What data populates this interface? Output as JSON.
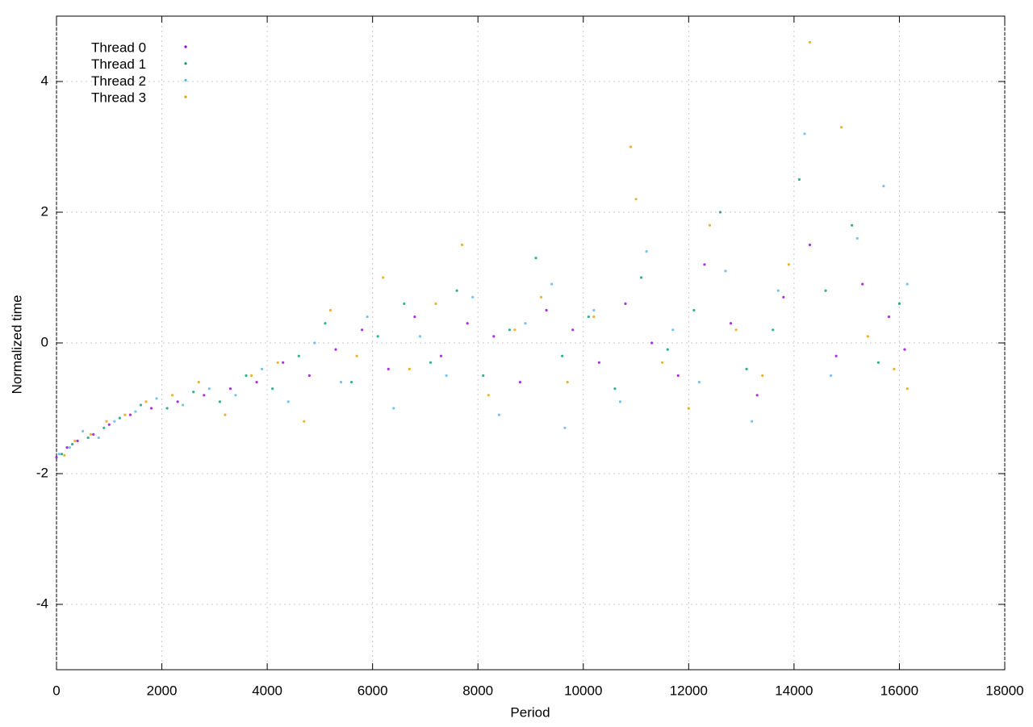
{
  "chart_data": {
    "type": "scatter",
    "xlabel": "Period",
    "ylabel": "Normalized time",
    "xlim": [
      0,
      18000
    ],
    "ylim": [
      -5,
      5
    ],
    "xticks": [
      0,
      2000,
      4000,
      6000,
      8000,
      10000,
      12000,
      14000,
      16000,
      18000
    ],
    "yticks": [
      -4,
      -2,
      0,
      2,
      4
    ],
    "grid": true,
    "legend": "top-left",
    "series": [
      {
        "name": "Thread 0",
        "color": "#9400d3",
        "x": [
          0,
          200,
          400,
          700,
          1000,
          1400,
          1800,
          2300,
          2800,
          3300,
          3800,
          4300,
          4800,
          5300,
          5800,
          6300,
          6800,
          7300,
          7800,
          8300,
          8800,
          9300,
          9800,
          10300,
          10800,
          11300,
          11800,
          12300,
          12800,
          13300,
          13800,
          14300,
          14800,
          15300,
          15800,
          16100
        ],
        "values": [
          -1.75,
          -1.6,
          -1.5,
          -1.4,
          -1.25,
          -1.1,
          -1.0,
          -0.9,
          -0.8,
          -0.7,
          -0.6,
          -0.3,
          -0.5,
          -0.1,
          0.2,
          -0.4,
          0.4,
          -0.2,
          0.3,
          0.1,
          -0.6,
          0.5,
          0.2,
          -0.3,
          0.6,
          0.0,
          -0.5,
          1.2,
          0.3,
          -0.8,
          0.7,
          1.5,
          -0.2,
          0.9,
          0.4,
          -0.1
        ]
      },
      {
        "name": "Thread 1",
        "color": "#009e73",
        "x": [
          100,
          300,
          600,
          900,
          1200,
          1600,
          2100,
          2600,
          3100,
          3600,
          4100,
          4600,
          5100,
          5600,
          6100,
          6600,
          7100,
          7600,
          8100,
          8600,
          9100,
          9600,
          10100,
          10600,
          11100,
          11600,
          12100,
          12600,
          13100,
          13600,
          14100,
          14600,
          15100,
          15600,
          16000
        ],
        "values": [
          -1.7,
          -1.55,
          -1.45,
          -1.3,
          -1.15,
          -0.95,
          -1.0,
          -0.75,
          -0.9,
          -0.5,
          -0.7,
          -0.2,
          0.3,
          -0.6,
          0.1,
          0.6,
          -0.3,
          0.8,
          -0.5,
          0.2,
          1.3,
          -0.2,
          0.4,
          -0.7,
          1.0,
          -0.1,
          0.5,
          2.0,
          -0.4,
          0.2,
          2.5,
          0.8,
          1.8,
          -0.3,
          0.6
        ]
      },
      {
        "name": "Thread 2",
        "color": "#56b4e9",
        "x": [
          50,
          250,
          500,
          800,
          1100,
          1500,
          1900,
          2400,
          2900,
          3400,
          3900,
          4400,
          4900,
          5400,
          5900,
          6400,
          6900,
          7400,
          7900,
          8400,
          8900,
          9400,
          9650,
          10200,
          10700,
          11200,
          11700,
          12200,
          12700,
          13200,
          13700,
          14200,
          14700,
          15200,
          15700,
          16150
        ],
        "values": [
          -1.7,
          -1.6,
          -1.35,
          -1.45,
          -1.2,
          -1.05,
          -0.85,
          -0.95,
          -0.7,
          -0.8,
          -0.4,
          -0.9,
          0.0,
          -0.6,
          0.4,
          -1.0,
          0.1,
          -0.5,
          0.7,
          -1.1,
          0.3,
          0.9,
          -1.3,
          0.5,
          -0.9,
          1.4,
          0.2,
          -0.6,
          1.1,
          -1.2,
          0.8,
          3.2,
          -0.5,
          1.6,
          2.4,
          0.9
        ]
      },
      {
        "name": "Thread 3",
        "color": "#e69f00",
        "x": [
          150,
          350,
          650,
          950,
          1300,
          1700,
          2200,
          2700,
          3200,
          3700,
          4200,
          4700,
          5200,
          5700,
          6200,
          6700,
          7200,
          7700,
          8200,
          8700,
          9200,
          9700,
          10200,
          10900,
          11000,
          11500,
          12000,
          12400,
          12900,
          13400,
          13900,
          14300,
          14900,
          15400,
          15900,
          16150
        ],
        "values": [
          -1.72,
          -1.5,
          -1.4,
          -1.2,
          -1.1,
          -0.9,
          -0.8,
          -0.6,
          -1.1,
          -0.5,
          -0.3,
          -1.2,
          0.5,
          -0.2,
          1.0,
          -0.4,
          0.6,
          1.5,
          -0.8,
          0.2,
          0.7,
          -0.6,
          0.4,
          3.0,
          2.2,
          -0.3,
          -1.0,
          1.8,
          0.2,
          -0.5,
          1.2,
          4.6,
          3.3,
          0.1,
          -0.4,
          -0.7
        ]
      }
    ]
  }
}
